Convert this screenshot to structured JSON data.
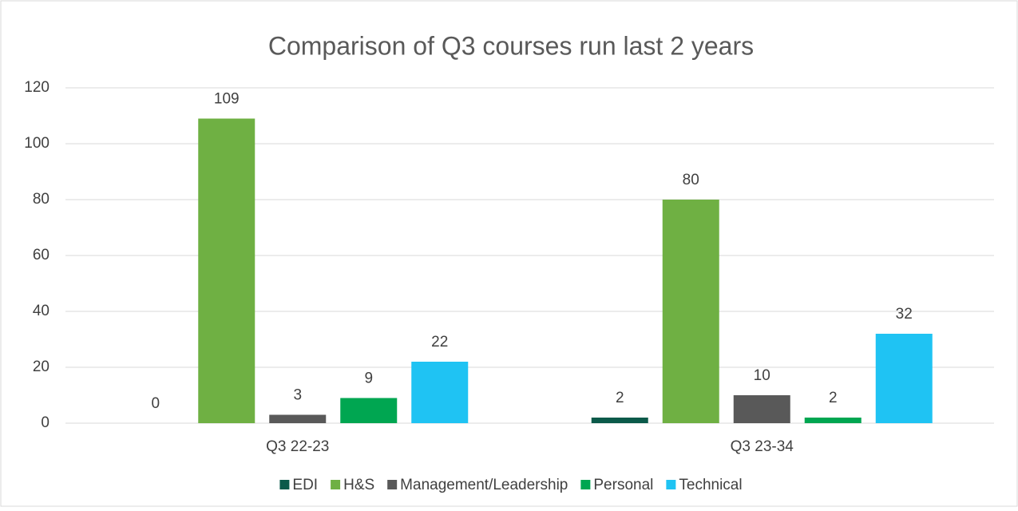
{
  "chart_data": {
    "type": "bar",
    "title": "Comparison of Q3 courses run last 2 years",
    "categories": [
      "Q3 22-23",
      "Q3 23-34"
    ],
    "series": [
      {
        "name": "EDI",
        "color": "#0b5a4a",
        "values": [
          0,
          2
        ]
      },
      {
        "name": "H&S",
        "color": "#6fb043",
        "values": [
          109,
          80
        ]
      },
      {
        "name": "Management/Leadership",
        "color": "#595959",
        "values": [
          3,
          10
        ]
      },
      {
        "name": "Personal",
        "color": "#00a651",
        "values": [
          9,
          2
        ]
      },
      {
        "name": "Technical",
        "color": "#1fc3f3",
        "values": [
          22,
          32
        ]
      }
    ],
    "ylim": [
      0,
      120
    ],
    "yticks": [
      0,
      20,
      40,
      60,
      80,
      100,
      120
    ],
    "grid": true,
    "legend": "bottom"
  }
}
